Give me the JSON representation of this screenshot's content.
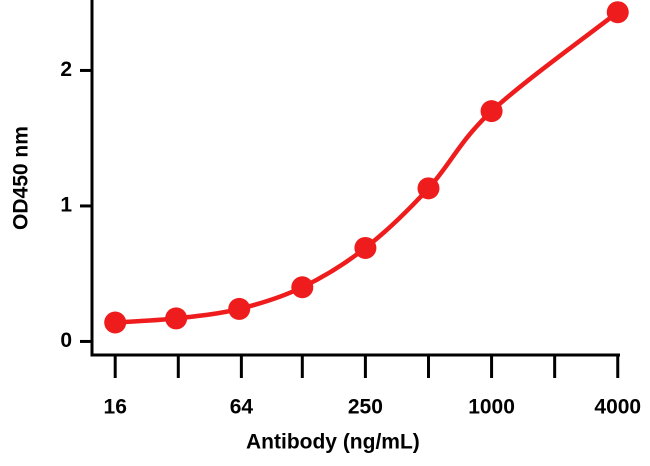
{
  "chart_data": {
    "type": "line",
    "xlabel": "Antibody (ng/mL)",
    "ylabel": "OD450 nm",
    "x": [
      16,
      31.25,
      62.5,
      125,
      250,
      500,
      1000,
      4000
    ],
    "series": [
      {
        "color": "#ee1c1c",
        "values": [
          0.14,
          0.17,
          0.24,
          0.4,
          0.69,
          1.13,
          1.7,
          2.43
        ]
      }
    ],
    "xscale": "log",
    "xlim": [
      12.4,
      4100
    ],
    "xticks": [
      16,
      64,
      250,
      1000,
      4000
    ],
    "xminor_ticks": [
      32,
      125,
      500,
      2000
    ],
    "ylim": [
      -0.1,
      2.52
    ],
    "yticks": [
      0,
      1,
      2
    ],
    "markers": true
  }
}
